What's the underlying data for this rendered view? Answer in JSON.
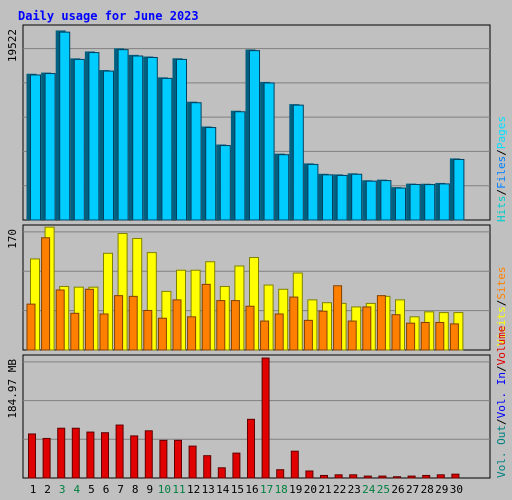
{
  "title": "Daily usage for June 2023",
  "colors": {
    "background": "#c0c0c0",
    "title": "#0000ff",
    "grid": "#808080",
    "hits": "#00cccc",
    "hits_bar": "#00ccff",
    "files": "#0080ff",
    "pages": "#00e0ff",
    "visits": "#ffff00",
    "sites": "#ff8000",
    "vol_out": "#008080",
    "vol_in": "#0000ff",
    "volume": "#e00000",
    "weekend_day": "#008040",
    "weekday": "#000000",
    "separator": "#000000"
  },
  "chart_data": [
    {
      "type": "bar",
      "panel": "hits-files",
      "max_label": "19522",
      "ylim": [
        0,
        19522
      ],
      "grid": true,
      "categories": [
        "1",
        "2",
        "3",
        "4",
        "5",
        "6",
        "7",
        "8",
        "9",
        "10",
        "11",
        "12",
        "13",
        "14",
        "15",
        "16",
        "17",
        "18",
        "19",
        "20",
        "21",
        "22",
        "23",
        "24",
        "25",
        "26",
        "27",
        "28",
        "29",
        "30"
      ],
      "series": [
        {
          "name": "Hits",
          "values": [
            15130,
            15250,
            19580,
            16710,
            17420,
            15510,
            17740,
            17070,
            16900,
            14760,
            16720,
            12260,
            9710,
            7860,
            11330,
            17620,
            14290,
            6920,
            12010,
            5920,
            4850,
            4790,
            4900,
            4190,
            4250,
            3480,
            3840,
            3830,
            3910,
            6430
          ]
        },
        {
          "name": "Files",
          "values": [
            14900,
            15050,
            19300,
            16500,
            17200,
            15300,
            17500,
            16850,
            16700,
            14550,
            16500,
            12050,
            9500,
            7650,
            11120,
            17400,
            14080,
            6710,
            11800,
            5710,
            4640,
            4580,
            4700,
            3990,
            4050,
            3280,
            3650,
            3640,
            3710,
            6220
          ]
        }
      ]
    },
    {
      "type": "bar",
      "panel": "visits-sites",
      "max_label": "170",
      "ylim": [
        0,
        170
      ],
      "grid": true,
      "categories": [
        "1",
        "2",
        "3",
        "4",
        "5",
        "6",
        "7",
        "8",
        "9",
        "10",
        "11",
        "12",
        "13",
        "14",
        "15",
        "16",
        "17",
        "18",
        "19",
        "20",
        "21",
        "22",
        "23",
        "24",
        "25",
        "26",
        "27",
        "28",
        "29",
        "30"
      ],
      "series": [
        {
          "name": "Visits",
          "values": [
            129,
            174,
            90,
            89,
            89,
            137,
            165,
            158,
            138,
            83,
            113,
            113,
            125,
            90,
            119,
            131,
            92,
            86,
            109,
            71,
            67,
            66,
            61,
            66,
            76,
            71,
            47,
            54,
            53,
            53
          ]
        },
        {
          "name": "Sites",
          "values": [
            65,
            159,
            85,
            52,
            86,
            51,
            77,
            76,
            56,
            45,
            71,
            47,
            93,
            70,
            70,
            62,
            41,
            51,
            75,
            42,
            55,
            91,
            41,
            61,
            77,
            50,
            38,
            39,
            39,
            37
          ]
        }
      ]
    },
    {
      "type": "bar",
      "panel": "volume",
      "max_label": "184.97 MB",
      "ylim": [
        0,
        184.97
      ],
      "grid": true,
      "categories": [
        "1",
        "2",
        "3",
        "4",
        "5",
        "6",
        "7",
        "8",
        "9",
        "10",
        "11",
        "12",
        "13",
        "14",
        "15",
        "16",
        "17",
        "18",
        "19",
        "20",
        "21",
        "22",
        "23",
        "24",
        "25",
        "26",
        "27",
        "28",
        "29",
        "30"
      ],
      "series": [
        {
          "name": "Volume",
          "values": [
            69,
            62,
            78,
            78,
            72,
            71,
            83,
            66,
            74,
            59,
            59,
            50,
            35,
            16,
            39,
            92,
            188,
            13,
            42,
            11,
            4,
            5,
            5,
            3,
            3,
            2,
            3,
            4,
            5,
            6
          ]
        }
      ]
    }
  ],
  "legends": {
    "top": [
      {
        "text": "Hits",
        "color_key": "hits"
      },
      {
        "text": "/",
        "color_key": "separator"
      },
      {
        "text": "Files",
        "color_key": "files"
      },
      {
        "text": "/",
        "color_key": "separator"
      },
      {
        "text": "Pages",
        "color_key": "pages"
      }
    ],
    "middle": [
      {
        "text": "Visits",
        "color_key": "visits"
      },
      {
        "text": "/",
        "color_key": "separator"
      },
      {
        "text": "Sites",
        "color_key": "sites"
      }
    ],
    "bottom": [
      {
        "text": "Vol. Out",
        "color_key": "vol_out"
      },
      {
        "text": "/",
        "color_key": "separator"
      },
      {
        "text": "Vol. In",
        "color_key": "vol_in"
      },
      {
        "text": "/",
        "color_key": "separator"
      },
      {
        "text": "Volume",
        "color_key": "volume"
      }
    ]
  },
  "weekend_days": [
    "3",
    "4",
    "10",
    "11",
    "17",
    "18",
    "24",
    "25"
  ]
}
